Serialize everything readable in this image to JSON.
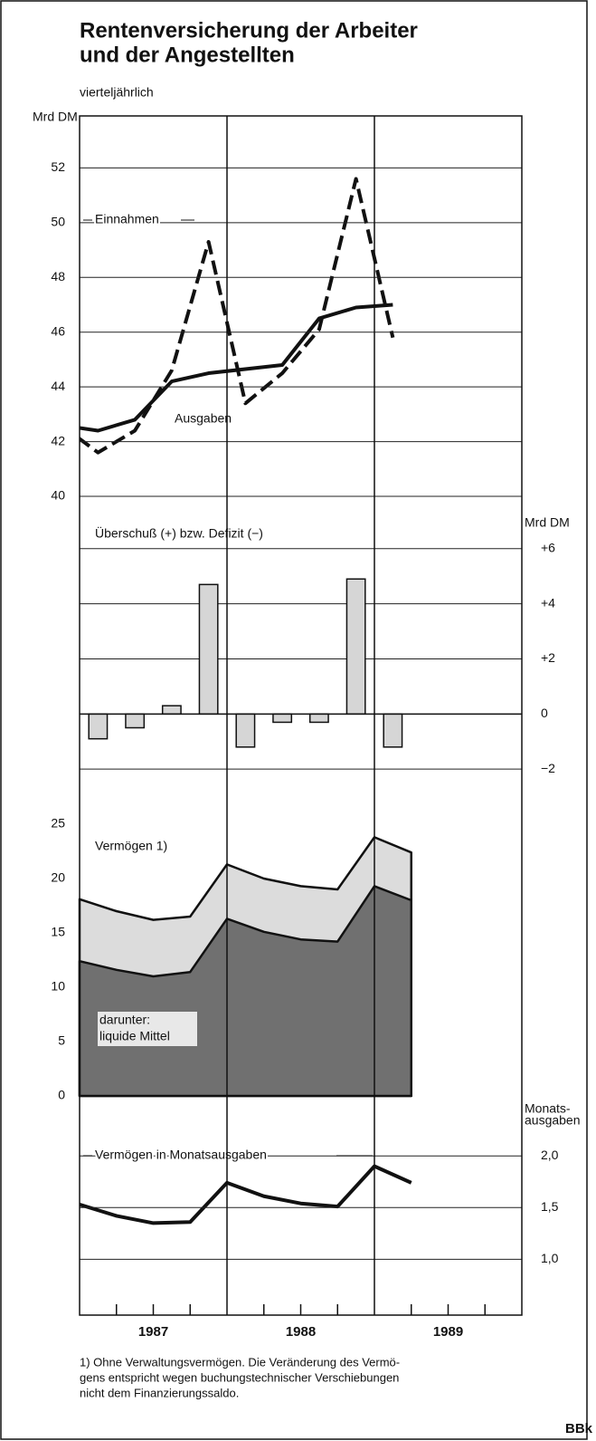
{
  "title": [
    "Rentenversicherung der Arbeiter",
    "und der Angestellten"
  ],
  "subtitle": "vierteljährlich",
  "x_labels": [
    "1987",
    "1988",
    "1989"
  ],
  "chart_data": [
    {
      "type": "line",
      "y_label": "Mrd DM",
      "axis_side": "left",
      "categories": [
        null,
        null,
        null,
        null,
        null,
        null,
        null,
        null,
        null,
        null
      ],
      "ylim": [
        40,
        53.9
      ],
      "yticks": [
        40,
        42,
        44,
        46,
        48,
        50,
        52
      ],
      "grid": true,
      "series": [
        {
          "name": "Einnahmen",
          "color": "#111111",
          "dash": true,
          "values": [
            42.6,
            41.6,
            42.4,
            44.6,
            49.3,
            43.4,
            44.5,
            46.1,
            51.6,
            45.8
          ]
        },
        {
          "name": "Ausgaben",
          "color": "#111111",
          "dash": false,
          "values": [
            42.6,
            42.4,
            42.8,
            44.2,
            44.5,
            44.65,
            44.8,
            46.5,
            46.9,
            47.0
          ]
        }
      ]
    },
    {
      "type": "bar",
      "title": "Überschuß (+) bzw. Defizit (−)",
      "y_label": "Mrd DM",
      "axis_side": "right",
      "categories": [
        null,
        null,
        null,
        null,
        null,
        null,
        null,
        null,
        null
      ],
      "ylim": [
        -4,
        7.9
      ],
      "yticks": [
        {
          "value": -2,
          "label": "−2"
        },
        0,
        {
          "value": 2,
          "label": "+2"
        },
        {
          "value": 4,
          "label": "+4"
        },
        {
          "value": 6,
          "label": "+6"
        }
      ],
      "grid": true,
      "color": "#d6d6d6",
      "values": [
        -0.9,
        -0.5,
        0.3,
        4.7,
        -1.2,
        -0.3,
        -0.3,
        4.9,
        -1.2
      ]
    },
    {
      "type": "area",
      "axis_side": "left",
      "categories": [
        null,
        null,
        null,
        null,
        null,
        null,
        null,
        null,
        null,
        null
      ],
      "ylim": [
        0,
        25
      ],
      "yticks": [
        0,
        5,
        10,
        15,
        20,
        25
      ],
      "grid": false,
      "series": [
        {
          "name": "Vermögen 1)",
          "color": "#dcdcdc",
          "values": [
            18.1,
            17.0,
            16.2,
            16.5,
            21.3,
            20.0,
            19.3,
            19.0,
            23.8,
            22.4
          ]
        },
        {
          "name": "liquide Mittel",
          "label_prefix": "darunter:",
          "color": "#707070",
          "values": [
            12.4,
            11.6,
            11.0,
            11.4,
            16.3,
            15.1,
            14.4,
            14.2,
            19.3,
            18.0
          ]
        }
      ]
    },
    {
      "type": "line",
      "y_label": [
        "Monats-",
        "ausgaben"
      ],
      "axis_side": "right",
      "categories": [
        null,
        null,
        null,
        null,
        null,
        null,
        null,
        null,
        null,
        null
      ],
      "ylim": [
        0.46,
        2.58
      ],
      "yticks": [
        {
          "value": 1.0,
          "label": "1,0"
        },
        {
          "value": 1.5,
          "label": "1,5"
        },
        {
          "value": 2.0,
          "label": "2,0"
        }
      ],
      "grid": true,
      "series": [
        {
          "name": "Vermögen in Monatsausgaben",
          "color": "#111111",
          "dash": false,
          "values": [
            1.53,
            1.42,
            1.35,
            1.36,
            1.74,
            1.61,
            1.54,
            1.51,
            1.9,
            1.74
          ]
        }
      ]
    }
  ],
  "footnote": [
    "1) Ohne Verwaltungsvermögen. Die Veränderung des Vermö-",
    "gens entspricht wegen buchungstechnischer Verschiebungen",
    "nicht dem Finanzierungssaldo."
  ],
  "source": "BBk"
}
